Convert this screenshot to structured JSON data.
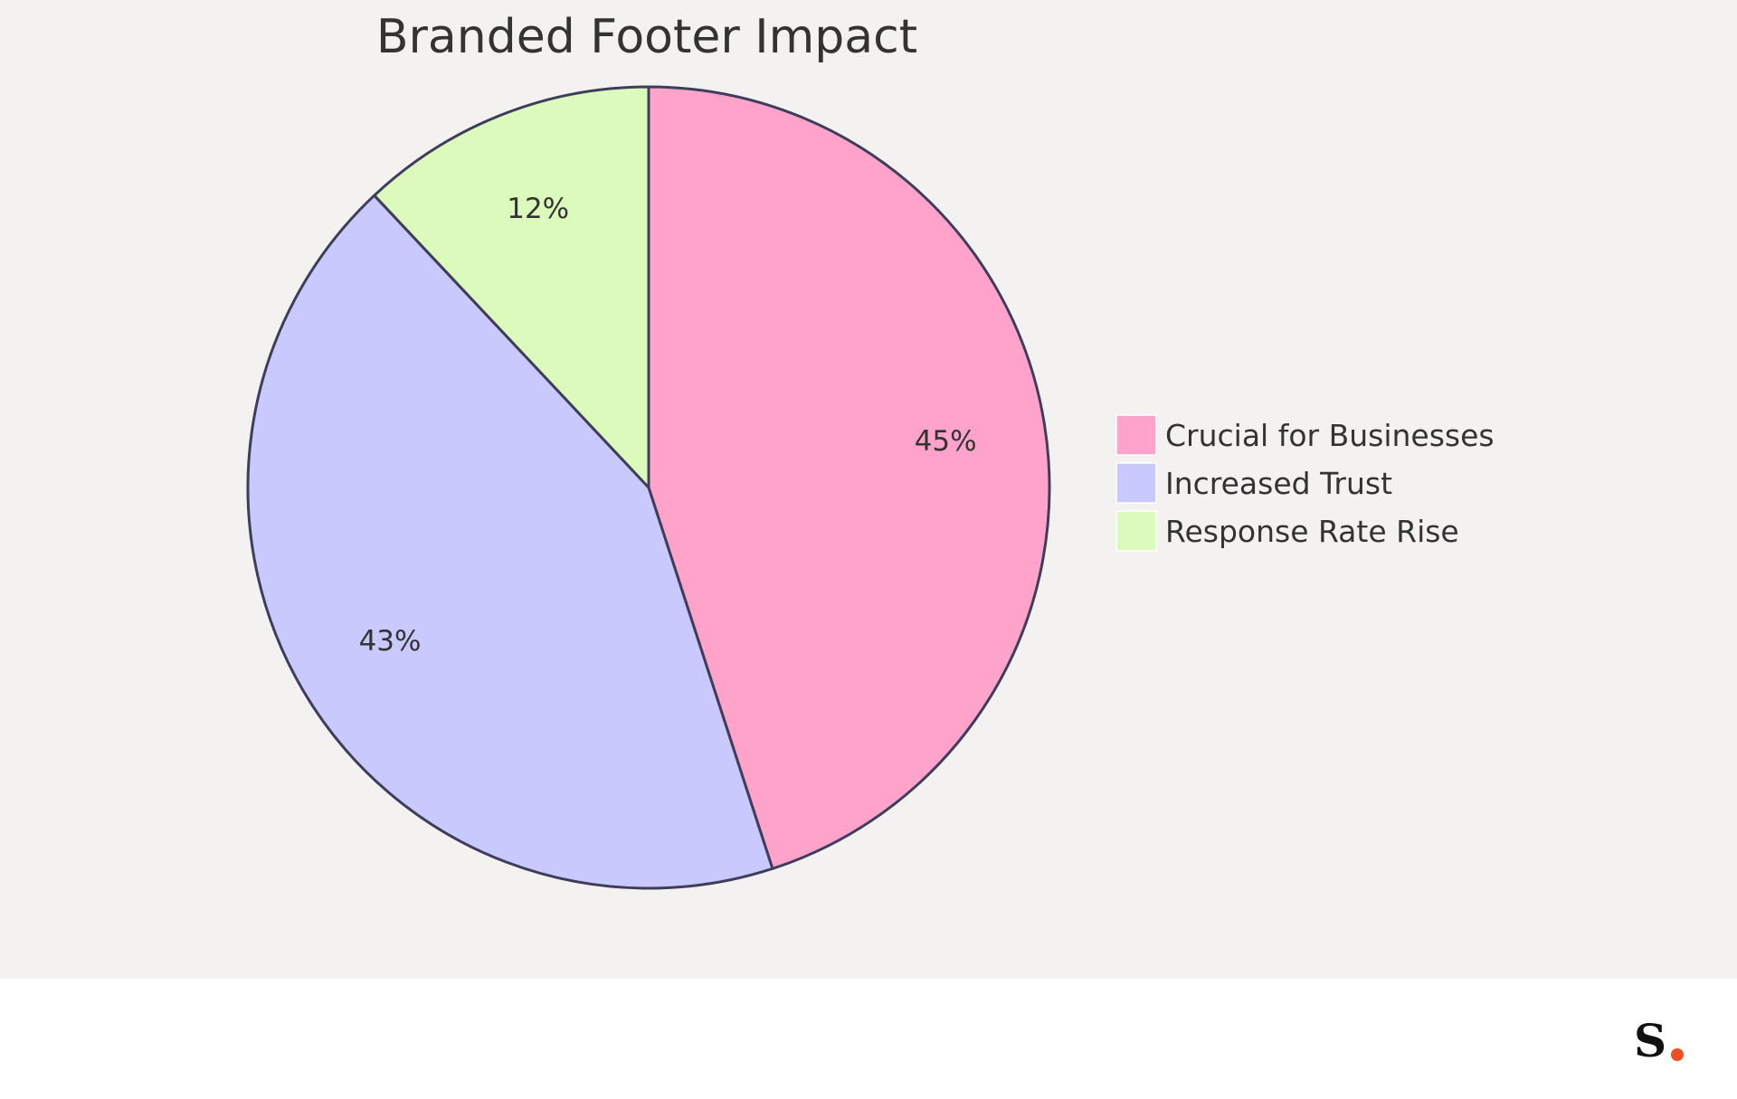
{
  "chart_data": {
    "type": "pie",
    "title": "Branded Footer Impact",
    "slices": [
      {
        "label": "Crucial for Businesses",
        "value": 45,
        "value_label": "45%",
        "color": "#ffa3cb"
      },
      {
        "label": "Increased Trust",
        "value": 43,
        "value_label": "43%",
        "color": "#c9c9fe"
      },
      {
        "label": "Response Rate Rise",
        "value": 12,
        "value_label": "12%",
        "color": "#dcfabc"
      }
    ],
    "legend_position": "right",
    "start_angle": "12 o'clock",
    "direction": "clockwise",
    "stroke_color": "#3e3e5c",
    "text_color": "#333333",
    "background_color": "#f3f2f1"
  },
  "footer": {
    "logo_text": "S",
    "logo_dot_color": "#f04e23"
  }
}
